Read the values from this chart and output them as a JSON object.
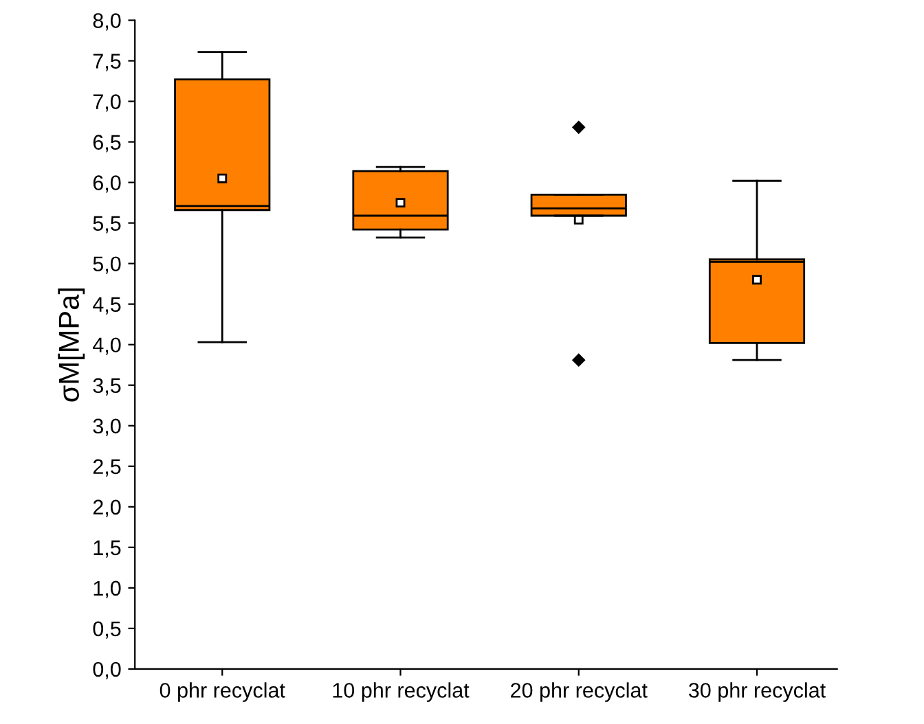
{
  "chart_data": {
    "type": "box",
    "ylabel": "σM[MPa]",
    "categories": [
      "0 phr recyclat",
      "10 phr recyclat",
      "20 phr recyclat",
      "30 phr recyclat"
    ],
    "color": "#ff8000",
    "ylim": [
      0,
      8
    ],
    "yticks": [
      {
        "value": 0,
        "label": "0,0"
      },
      {
        "value": 0.5,
        "label": "0,5"
      },
      {
        "value": 1,
        "label": "1,0"
      },
      {
        "value": 1.5,
        "label": "1,5"
      },
      {
        "value": 2,
        "label": "2,0"
      },
      {
        "value": 2.5,
        "label": "2,5"
      },
      {
        "value": 3,
        "label": "3,0"
      },
      {
        "value": 3.5,
        "label": "3,5"
      },
      {
        "value": 4,
        "label": "4,0"
      },
      {
        "value": 4.5,
        "label": "4,5"
      },
      {
        "value": 5,
        "label": "5,0"
      },
      {
        "value": 5.5,
        "label": "5,5"
      },
      {
        "value": 6,
        "label": "6,0"
      },
      {
        "value": 6.5,
        "label": "6,5"
      },
      {
        "value": 7,
        "label": "7,0"
      },
      {
        "value": 7.5,
        "label": "7,5"
      },
      {
        "value": 8,
        "label": "8,0"
      }
    ],
    "boxes": [
      {
        "low": 4.03,
        "q1": 5.66,
        "median": 5.71,
        "q3": 7.27,
        "high": 7.61,
        "mean": 6.05
      },
      {
        "low": 5.32,
        "q1": 5.42,
        "median": 5.59,
        "q3": 6.14,
        "high": 6.19,
        "mean": 5.75
      },
      {
        "low": 5.59,
        "q1": 5.59,
        "median": 5.68,
        "q3": 5.85,
        "high": 5.85,
        "mean": 5.54,
        "outliers": [
          6.68,
          3.81
        ]
      },
      {
        "low": 3.81,
        "q1": 4.02,
        "median": 5.02,
        "q3": 5.05,
        "high": 6.02,
        "mean": 4.8
      }
    ],
    "grid": false
  }
}
